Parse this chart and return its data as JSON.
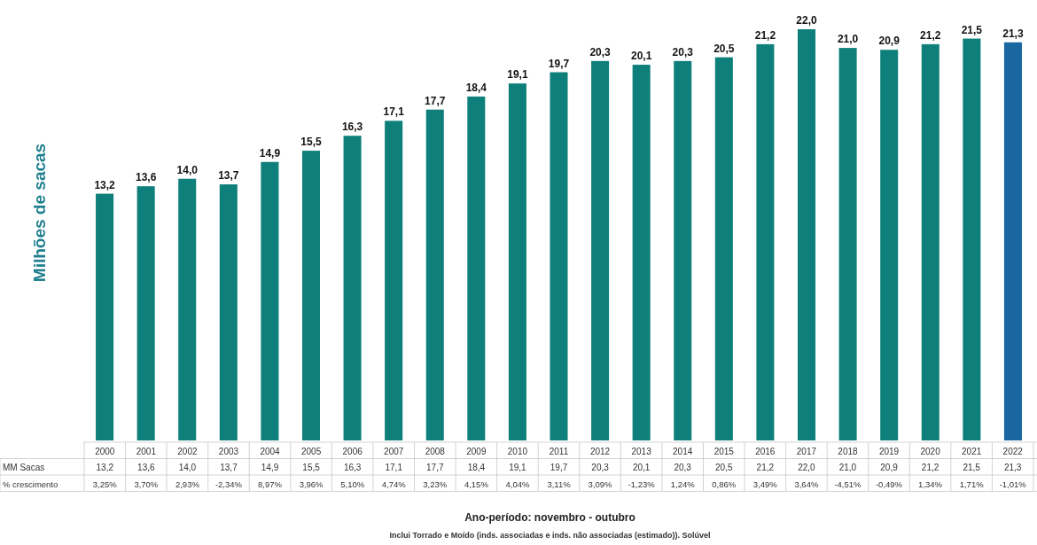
{
  "chart_data": {
    "type": "bar",
    "ylabel": "Milhões de sacas",
    "categories": [
      "2000",
      "2001",
      "2002",
      "2003",
      "2004",
      "2005",
      "2006",
      "2007",
      "2008",
      "2009",
      "2010",
      "2011",
      "2012",
      "2013",
      "2014",
      "2015",
      "2016",
      "2017",
      "2018",
      "2019",
      "2020",
      "2021",
      "2022"
    ],
    "values": [
      13.2,
      13.6,
      14.0,
      13.7,
      14.9,
      15.5,
      16.3,
      17.1,
      17.7,
      18.4,
      19.1,
      19.7,
      20.3,
      20.1,
      20.3,
      20.5,
      21.2,
      22.0,
      21.0,
      20.9,
      21.2,
      21.5,
      21.3
    ],
    "value_labels": [
      "13,2",
      "13,6",
      "14,0",
      "13,7",
      "14,9",
      "15,5",
      "16,3",
      "17,1",
      "17,7",
      "18,4",
      "19,1",
      "19,7",
      "20,3",
      "20,1",
      "20,3",
      "20,5",
      "21,2",
      "22,0",
      "21,0",
      "20,9",
      "21,2",
      "21,5",
      "21,3"
    ],
    "colors": [
      "#0e7f7a",
      "#0e7f7a",
      "#0e7f7a",
      "#0e7f7a",
      "#0e7f7a",
      "#0e7f7a",
      "#0e7f7a",
      "#0e7f7a",
      "#0e7f7a",
      "#0e7f7a",
      "#0e7f7a",
      "#0e7f7a",
      "#0e7f7a",
      "#0e7f7a",
      "#0e7f7a",
      "#0e7f7a",
      "#0e7f7a",
      "#0e7f7a",
      "#0e7f7a",
      "#0e7f7a",
      "#0e7f7a",
      "#0e7f7a",
      "#1a66a0"
    ],
    "annotations": [
      "MM Sacas",
      "% crescimento",
      "Ano-período: novembro - outubro",
      "Inclui Torrado e Moído (inds. associadas e inds. não associadas (estimado)). Solúvel",
      "3,25%",
      "3,70%",
      "2,93%",
      "-2,34%",
      "8,97%",
      "3,96%",
      "5,10%",
      "4,74%",
      "3,23%",
      "4,15%",
      "4,04%",
      "3,11%",
      "3,09%",
      "-1,23%",
      "1,24%",
      "0,86%",
      "3,49%",
      "3,64%",
      "-4,51%",
      "-0,49%",
      "1,34%",
      "1,71%",
      "-1,01%"
    ]
  }
}
